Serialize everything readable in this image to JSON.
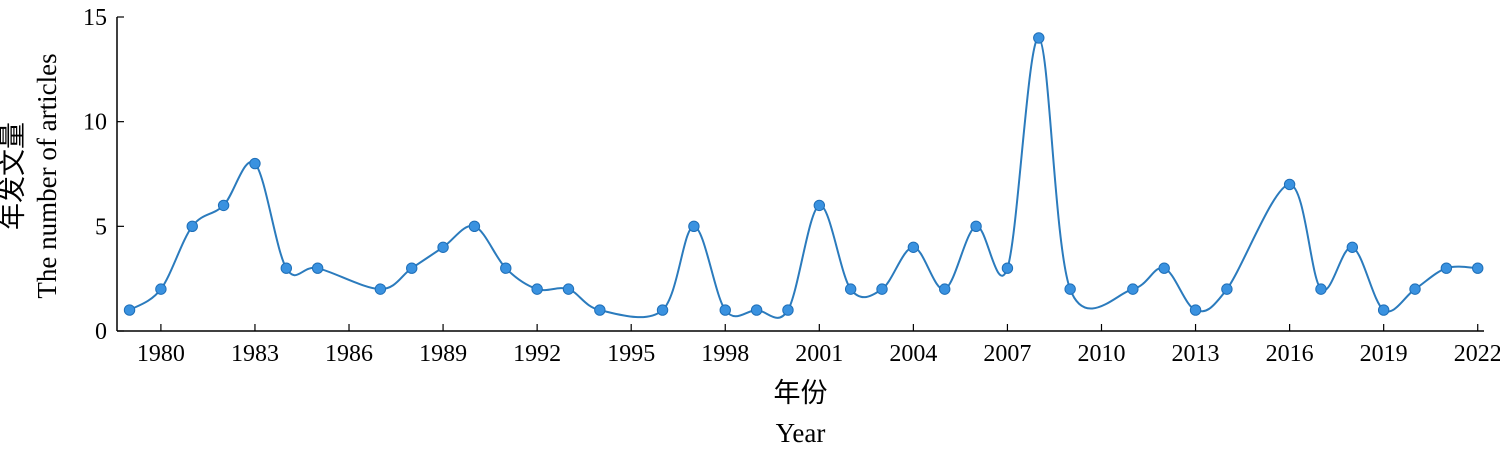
{
  "chart_data": {
    "type": "line",
    "title": "",
    "xlabel_cn": "年份",
    "xlabel_en": "Year",
    "ylabel_cn": "年发文量",
    "ylabel_en": "The number of articles",
    "xlim": [
      1978.6,
      2022.2
    ],
    "ylim": [
      0,
      15
    ],
    "x_ticks": [
      1980,
      1983,
      1986,
      1989,
      1992,
      1995,
      1998,
      2001,
      2004,
      2007,
      2010,
      2013,
      2016,
      2019,
      2022
    ],
    "y_ticks": [
      0,
      5,
      10,
      15
    ],
    "smooth": true,
    "grid": false,
    "legend": "none",
    "series": [
      {
        "points": [
          [
            1979,
            1
          ],
          [
            1980,
            2
          ],
          [
            1981,
            5
          ],
          [
            1982,
            6
          ],
          [
            1983,
            8
          ],
          [
            1984,
            3
          ],
          [
            1985,
            3
          ],
          [
            1987,
            2
          ],
          [
            1988,
            3
          ],
          [
            1989,
            4
          ],
          [
            1990,
            5
          ],
          [
            1991,
            3
          ],
          [
            1992,
            2
          ],
          [
            1993,
            2
          ],
          [
            1994,
            1
          ],
          [
            1996,
            1
          ],
          [
            1997,
            5
          ],
          [
            1998,
            1
          ],
          [
            1999,
            1
          ],
          [
            2000,
            1
          ],
          [
            2001,
            6
          ],
          [
            2002,
            2
          ],
          [
            2003,
            2
          ],
          [
            2004,
            4
          ],
          [
            2005,
            2
          ],
          [
            2006,
            5
          ],
          [
            2007,
            3
          ],
          [
            2008,
            14
          ],
          [
            2009,
            2
          ],
          [
            2011,
            2
          ],
          [
            2012,
            3
          ],
          [
            2013,
            1
          ],
          [
            2014,
            2
          ],
          [
            2016,
            7
          ],
          [
            2017,
            2
          ],
          [
            2018,
            4
          ],
          [
            2019,
            1
          ],
          [
            2020,
            2
          ],
          [
            2021,
            3
          ],
          [
            2022,
            3
          ]
        ],
        "line_color": "#2b7bbd",
        "marker_color": "#3a92e0",
        "marker_edge_color": "#1f6fb8"
      }
    ]
  }
}
